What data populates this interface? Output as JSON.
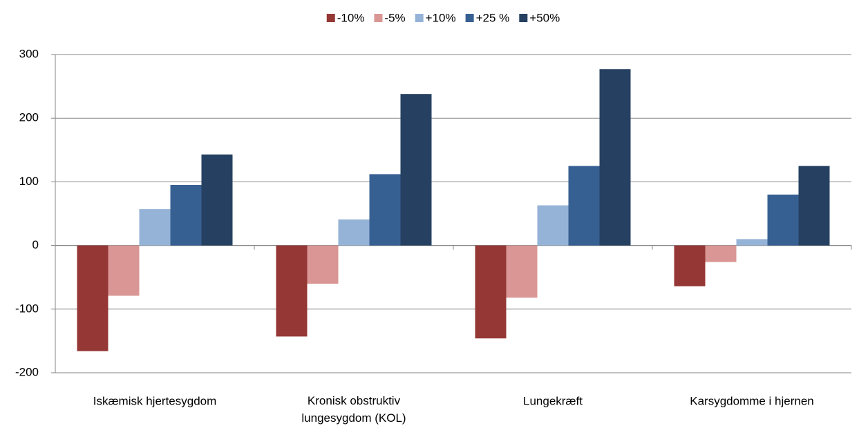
{
  "chart_data": {
    "type": "bar",
    "categories": [
      "Iskæmisk hjertesygdom",
      "Kronisk obstruktiv lungesygdom (KOL)",
      "Lungekræft",
      "Karsygdomme i hjernen"
    ],
    "series": [
      {
        "name": "-10%",
        "color": "#953735",
        "values": [
          -166,
          -143,
          -146,
          -64
        ]
      },
      {
        "name": "-5%",
        "color": "#d99694",
        "values": [
          -79,
          -60,
          -82,
          -26
        ]
      },
      {
        "name": "+10%",
        "color": "#95b3d7",
        "values": [
          57,
          41,
          63,
          10
        ]
      },
      {
        "name": "+25 %",
        "color": "#376092",
        "values": [
          95,
          112,
          125,
          80
        ]
      },
      {
        "name": "+50%",
        "color": "#254061",
        "values": [
          143,
          238,
          277,
          125
        ]
      }
    ],
    "ylim": [
      -200,
      300
    ],
    "yticks": [
      -200,
      -100,
      0,
      100,
      200,
      300
    ],
    "grid": true,
    "legend": "top"
  }
}
